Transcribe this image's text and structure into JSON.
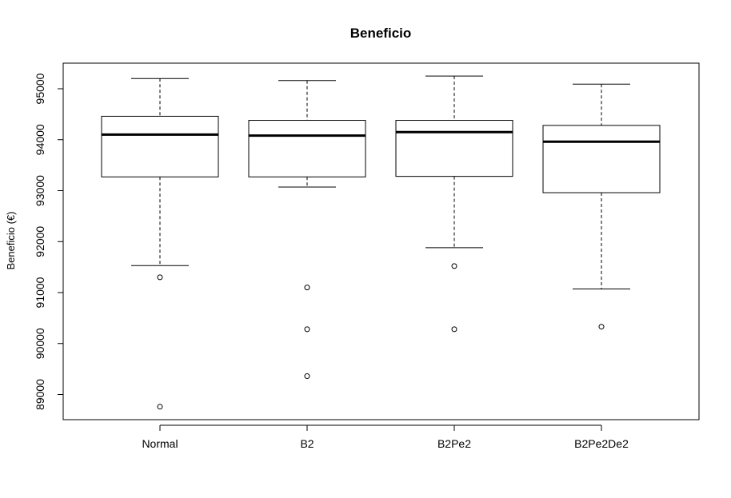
{
  "chart_data": {
    "type": "boxplot",
    "title": "Beneficio",
    "xlabel": "",
    "ylabel": "Beneficio (€)",
    "ylim": [
      88500,
      95500
    ],
    "yticks": [
      89000,
      90000,
      91000,
      92000,
      93000,
      94000,
      95000
    ],
    "ytick_labels": [
      "89000",
      "90000",
      "91000",
      "92000",
      "93000",
      "94000",
      "95000"
    ],
    "categories": [
      "Normal",
      "B2",
      "B2Pe2",
      "B2Pe2De2"
    ],
    "boxes": [
      {
        "name": "Normal",
        "whisker_low": 91530,
        "q1": 93270,
        "median": 94100,
        "q3": 94460,
        "whisker_high": 95200,
        "outliers": [
          91300,
          88760
        ]
      },
      {
        "name": "B2",
        "whisker_low": 93070,
        "q1": 93270,
        "median": 94080,
        "q3": 94380,
        "whisker_high": 95160,
        "outliers": [
          91100,
          90280,
          89360
        ]
      },
      {
        "name": "B2Pe2",
        "whisker_low": 91880,
        "q1": 93280,
        "median": 94150,
        "q3": 94380,
        "whisker_high": 95250,
        "outliers": [
          91520,
          90280
        ]
      },
      {
        "name": "B2Pe2De2",
        "whisker_low": 91070,
        "q1": 92960,
        "median": 93960,
        "q3": 94280,
        "whisker_high": 95090,
        "outliers": [
          90330
        ]
      }
    ],
    "grid": false,
    "legend": "none"
  }
}
